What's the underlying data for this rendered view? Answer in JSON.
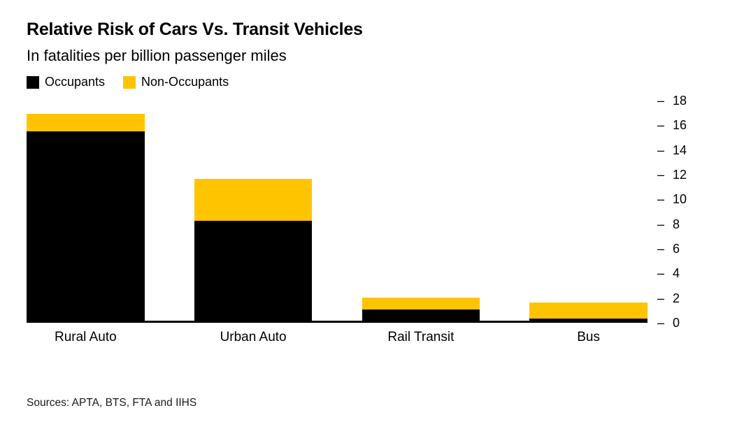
{
  "chart_data": {
    "type": "bar",
    "stacked": true,
    "title": "Relative Risk of Cars Vs. Transit Vehicles",
    "subtitle": "In fatalities per billion passenger miles",
    "categories": [
      "Rural Auto",
      "Urban Auto",
      "Rail Transit",
      "Bus"
    ],
    "series": [
      {
        "name": "Occupants",
        "color": "#000000",
        "values": [
          15.5,
          8.2,
          0.9,
          0.2
        ]
      },
      {
        "name": "Non-Occupants",
        "color": "#FFC400",
        "values": [
          1.4,
          3.4,
          1.0,
          1.3
        ]
      }
    ],
    "xlabel": "",
    "ylabel": "",
    "ylim": [
      0,
      18
    ],
    "yticks": [
      0,
      2,
      4,
      6,
      8,
      10,
      12,
      14,
      16,
      18
    ],
    "tick_dash": "–",
    "grid": false,
    "legend_position": "top-left",
    "axis_color": "#000000"
  },
  "footer": {
    "sources": "Sources: APTA, BTS, FTA and IIHS"
  }
}
